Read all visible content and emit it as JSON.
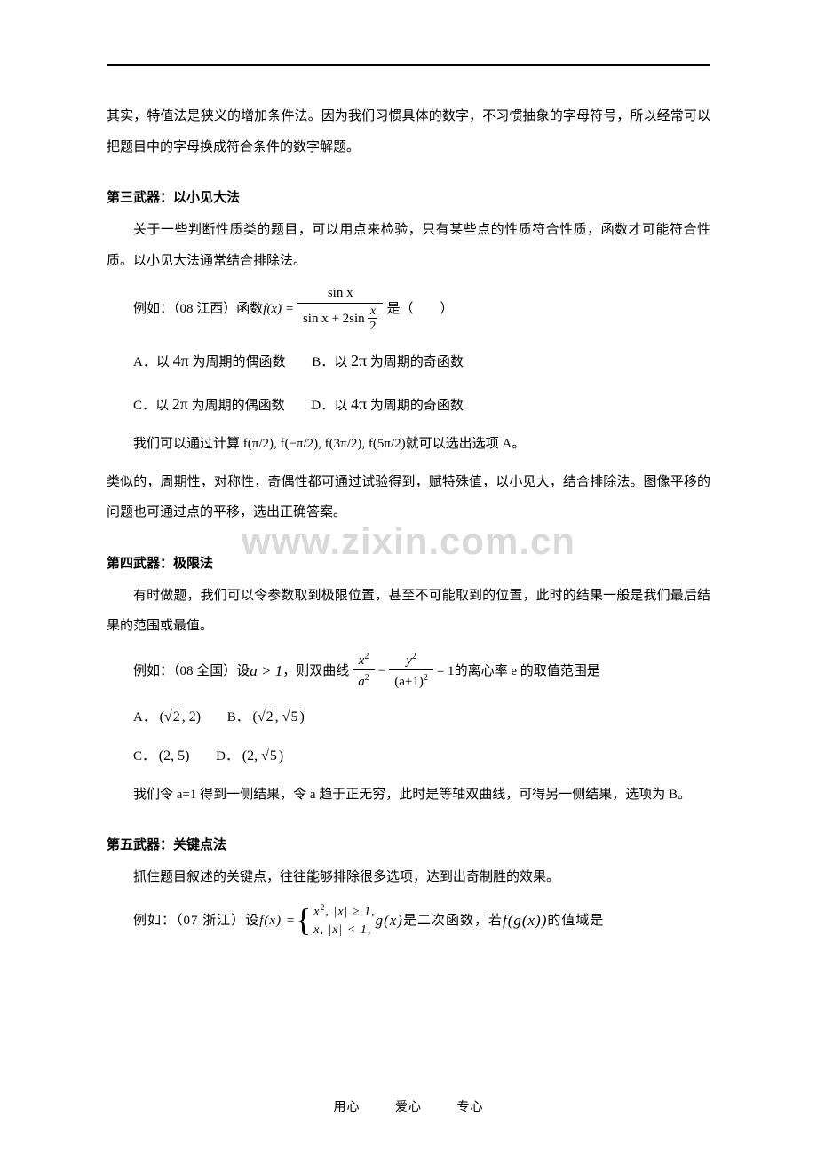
{
  "intro": {
    "line": "其实，特值法是狭义的增加条件法。因为我们习惯具体的数字，不习惯抽象的字母符号，所以经常可以把题目中的字母换成符合条件的数字解题。"
  },
  "section3": {
    "heading": "第三武器：以小见大法",
    "p1": "关于一些判断性质类的题目，可以用点来检验，只有某些点的性质符合性质，函数才可能符合性质。以小见大法通常结合排除法。",
    "example_prefix": "例如：（08 江西）函数 ",
    "example_suffix": " 是（　　）",
    "func_lhs": "f(x) =",
    "frac_num": "sin x",
    "frac_den_left": "sin x + 2sin",
    "frac_den_sub_num": "x",
    "frac_den_sub_den": "2",
    "opts": {
      "A_pre": "A．以 ",
      "A_mid": "4π",
      "A_post": " 为周期的偶函数",
      "B_pre": "B．以 ",
      "B_mid": "2π",
      "B_post": " 为周期的奇函数",
      "C_pre": "C．以 ",
      "C_mid": "2π",
      "C_post": " 为周期的偶函数",
      "D_pre": "D．以 ",
      "D_mid": "4π",
      "D_post": " 为周期的奇函数"
    },
    "p2": "我们可以通过计算 f(π/2), f(−π/2), f(3π/2), f(5π/2)就可以选出选项 A。",
    "p3": "类似的，周期性，对称性，奇偶性都可通过试验得到，赋特殊值，以小见大，结合排除法。图像平移的问题也可通过点的平移，选出正确答案。"
  },
  "section4": {
    "heading": "第四武器：极限法",
    "p1": "有时做题，我们可以令参数取到极限位置，甚至不可能取到的位置，此时的结果一般是我们最后结果的范围或最值。",
    "example_prefix": "例如：（08 全国）设 ",
    "cond": "a > 1",
    "example_mid": " ，则双曲线 ",
    "frac1_num": "x",
    "frac1_num_sup": "2",
    "frac1_den": "a",
    "frac1_den_sup": "2",
    "minus": " − ",
    "frac2_num": "y",
    "frac2_num_sup": "2",
    "frac2_den": "(a+1)",
    "frac2_den_sup": "2",
    "eq": " = 1",
    "example_suffix": "的离心率 e 的取值范围是",
    "opts": {
      "A": "A．",
      "A_val": "(√2, 2)",
      "B": "B．",
      "B_val": "(√2, √5)",
      "C": "C．",
      "C_val": "(2, 5)",
      "D": "D．",
      "D_val": "(2, √5)"
    },
    "p2": "我们令 a=1 得到一侧结果，令 a 趋于正无穷，此时是等轴双曲线，可得另一侧结果，选项为 B。"
  },
  "section5": {
    "heading": "第五武器：关键点法",
    "p1": "抓住题目叙述的关键点，往往能够排除很多选项，达到出奇制胜的效果。",
    "example_prefix": "例如：（07 浙江）设 ",
    "f_lhs": "f(x) =",
    "case1": "x², |x| ≥ 1,",
    "case2": "x,  |x| < 1,",
    "g_text": " g(x)",
    "mid": " 是二次函数，若 ",
    "fg": "f(g(x))",
    "suffix": " 的值域是"
  },
  "watermark": "www.zixin.com.cn",
  "footer": {
    "a": "用心",
    "b": "爱心",
    "c": "专心"
  },
  "colors": {
    "text": "#000000",
    "background": "#ffffff",
    "watermark": "#d9d9d9",
    "rule": "#000000"
  },
  "fonts": {
    "body_family": "SimSun",
    "body_size_pt": 11,
    "watermark_size_pt": 32
  }
}
